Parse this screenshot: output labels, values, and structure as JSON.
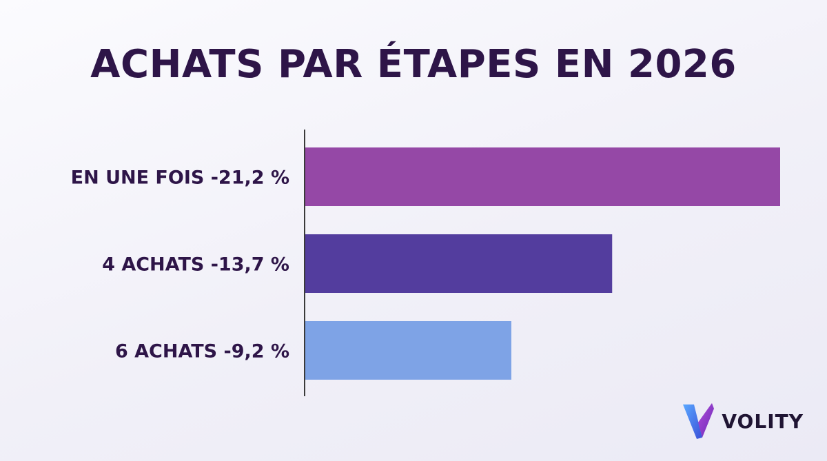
{
  "title": "ACHATS PAR ÉTAPES EN 2026",
  "colors": {
    "title": "#2e1548",
    "bar_1": "#9548a6",
    "bar_2": "#533d9e",
    "bar_3": "#7ea3e6"
  },
  "chart_data": {
    "type": "bar",
    "orientation": "horizontal",
    "title": "ACHATS PAR ÉTAPES EN 2026",
    "categories": [
      "EN UNE FOIS -21,2 %",
      "4 ACHATS -13,7 %",
      "6 ACHATS -9,2 %"
    ],
    "values": [
      21.2,
      13.7,
      9.2
    ],
    "xlim": [
      0,
      21.2
    ],
    "grid": false,
    "legend": "none"
  },
  "logo": {
    "icon": "volity-v-logo",
    "text": "VOLITY"
  }
}
